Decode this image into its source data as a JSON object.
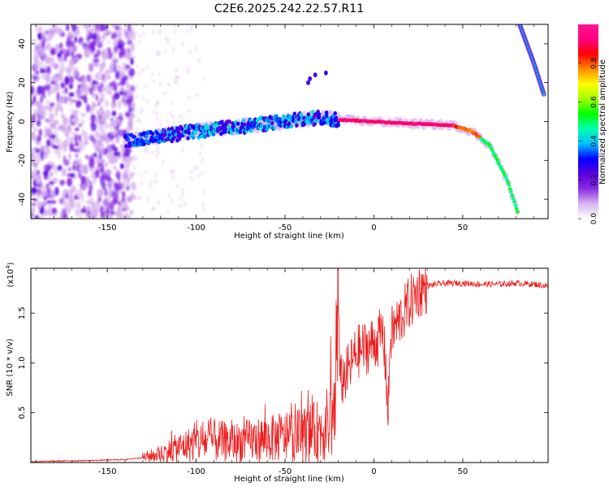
{
  "title": "C2E6.2025.242.22.57.R11",
  "chart_data": [
    {
      "type": "heatmap",
      "title": "C2E6.2025.242.22.57.R11",
      "xlabel": "Height of straight line (km)",
      "ylabel": "Frequency (Hz)",
      "xlim": [
        -193,
        98
      ],
      "ylim": [
        -50,
        50
      ],
      "x_ticks": [
        -150,
        -100,
        -50,
        0,
        50
      ],
      "x_tick_labels": [
        "-150",
        "-100",
        "-50",
        "0",
        "50"
      ],
      "y_ticks": [
        -40,
        -20,
        0,
        20,
        40
      ],
      "y_tick_labels": [
        "-40",
        "-20",
        "0",
        "20",
        "40"
      ],
      "colorbar": {
        "label": "Normalized spectral amplitude",
        "range": [
          0,
          1
        ],
        "ticks": [
          0,
          0.2,
          0.4,
          0.6,
          0.8
        ],
        "tick_labels": [
          "0.0",
          "0.2",
          "0.4",
          "0.6",
          "0.8"
        ],
        "colors": [
          "#ffffff",
          "#d8b4f0",
          "#8a2be2",
          "#5a00e0",
          "#0000ff",
          "#00bfff",
          "#00ffb0",
          "#00ff00",
          "#a0ff00",
          "#ffff00",
          "#ff8c00",
          "#ff0000",
          "#ff0080",
          "#ff1493"
        ]
      },
      "features": [
        {
          "name": "noise-region",
          "x_range": [
            -193,
            -135
          ],
          "freq_range": [
            -50,
            50
          ],
          "amplitude": 0.1
        },
        {
          "name": "trend-band",
          "points": [
            [
              -140,
              -10
            ],
            [
              -100,
              -5
            ],
            [
              -60,
              -1
            ],
            [
              -30,
              2
            ],
            [
              -20,
              1
            ],
            [
              0,
              0
            ],
            [
              20,
              -1
            ],
            [
              45,
              -2
            ],
            [
              55,
              -5
            ],
            [
              65,
              -12
            ],
            [
              75,
              -30
            ],
            [
              82,
              -50
            ]
          ],
          "amplitude": 0.75
        },
        {
          "name": "return-band",
          "points": [
            [
              82,
              50
            ],
            [
              90,
              30
            ],
            [
              96,
              13
            ]
          ],
          "amplitude": 0.4
        }
      ]
    },
    {
      "type": "line",
      "xlabel": "Height of straight line (km)",
      "ylabel": "SNR (10 * v/v)",
      "y_multiplier": "(x10",
      "y_multiplier_exp": "4",
      "y_multiplier_close": ")",
      "xlim": [
        -193,
        98
      ],
      "ylim": [
        0,
        1.95
      ],
      "x_ticks": [
        -150,
        -100,
        -50,
        0,
        50
      ],
      "x_tick_labels": [
        "-150",
        "-100",
        "-50",
        "0",
        "50"
      ],
      "y_ticks": [
        0.5,
        1.0,
        1.5
      ],
      "y_tick_labels": [
        "0.5",
        "1.0",
        "1.5"
      ],
      "series": [
        {
          "name": "SNR",
          "color": "#ee1c1c",
          "x": [
            -193,
            -160,
            -140,
            -130,
            -120,
            -110,
            -100,
            -90,
            -80,
            -70,
            -60,
            -50,
            -40,
            -30,
            -25,
            -22,
            -20,
            -19,
            -15,
            -10,
            -5,
            0,
            3,
            5,
            7,
            8,
            9,
            10,
            15,
            20,
            25,
            30,
            35,
            40,
            50,
            60,
            70,
            80,
            90,
            98
          ],
          "values": [
            0.01,
            0.02,
            0.03,
            0.05,
            0.09,
            0.15,
            0.2,
            0.22,
            0.2,
            0.22,
            0.24,
            0.25,
            0.28,
            0.32,
            0.4,
            0.55,
            1.6,
            0.8,
            0.9,
            1.1,
            1.15,
            1.2,
            1.25,
            1.3,
            0.9,
            0.4,
            1.2,
            1.3,
            1.45,
            1.6,
            1.72,
            1.77,
            1.79,
            1.8,
            1.8,
            1.79,
            1.79,
            1.8,
            1.79,
            1.77
          ]
        }
      ]
    }
  ]
}
